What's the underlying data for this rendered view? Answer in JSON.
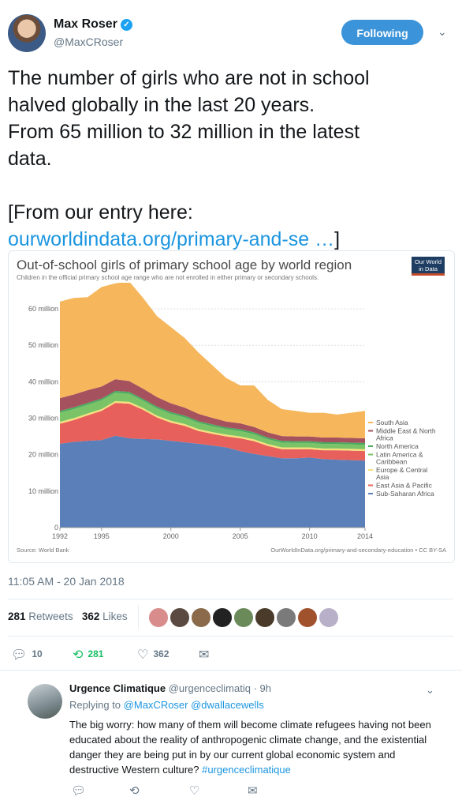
{
  "tweet": {
    "author_name": "Max Roser",
    "author_handle": "@MaxCRoser",
    "verified_icon": "verified-badge-icon",
    "follow_label": "Following",
    "text": "The number of girls who are not in school\nhalved globally in the last 20 years.\nFrom 65 million to 32 million in the latest\ndata.\n\n[From our entry here:",
    "link_text": "ourworldindata.org/primary-and-se …",
    "link_suffix": "]",
    "timestamp": "11:05 AM - 20 Jan 2018",
    "retweets_count": "281",
    "retweets_label": "Retweets",
    "likes_count": "362",
    "likes_label": "Likes",
    "actions": {
      "replies": "10",
      "retweets": "281",
      "likes": "362"
    }
  },
  "chart_card": {
    "title": "Out-of-school girls of primary school age by world region",
    "subtitle": "Children in the official primary school age range who are not enrolled in either primary or secondary schools.",
    "logo_line1": "Our World",
    "logo_line2": "in Data",
    "source_left": "Source: World Bank",
    "source_right": "OurWorldInData.org/primary-and-secondary-education • CC BY-SA"
  },
  "chart_data": {
    "type": "area",
    "stacked": true,
    "title": "Out-of-school girls of primary school age by world region",
    "x": [
      1992,
      1993,
      1994,
      1995,
      1996,
      1997,
      1998,
      1999,
      2000,
      2001,
      2002,
      2003,
      2004,
      2005,
      2006,
      2007,
      2008,
      2009,
      2010,
      2011,
      2012,
      2013,
      2014
    ],
    "xticks": [
      "1992",
      "1995",
      "2000",
      "2005",
      "2010",
      "2014"
    ],
    "xtick_values": [
      1992,
      1995,
      2000,
      2005,
      2010,
      2014
    ],
    "yticks": [
      "0",
      "10 million",
      "20 million",
      "30 million",
      "40 million",
      "50 million",
      "60 million"
    ],
    "ytick_values": [
      0,
      10,
      20,
      30,
      40,
      50,
      60
    ],
    "ylim": [
      0,
      65
    ],
    "unit": "million",
    "legend_position": "right",
    "series": [
      {
        "name": "Sub-Saharan Africa",
        "color": "#5b7fb8",
        "values": [
          23,
          23.5,
          23.8,
          24,
          25.2,
          24.5,
          24.3,
          24.2,
          23.8,
          23.4,
          23,
          22.5,
          22,
          21,
          20.2,
          19.6,
          19,
          19,
          19.2,
          18.8,
          18.6,
          18.5,
          18.4
        ]
      },
      {
        "name": "East Asia & Pacific",
        "color": "#e8605c",
        "values": [
          5.5,
          6,
          7,
          8,
          9,
          9.5,
          8,
          6,
          5,
          4.5,
          3.5,
          3.2,
          3,
          3.5,
          3.5,
          2.8,
          2.5,
          2.5,
          2.3,
          2.4,
          2.6,
          2.6,
          2.6
        ]
      },
      {
        "name": "Europe & Central Asia",
        "color": "#f5e07c",
        "values": [
          0.5,
          0.5,
          0.5,
          0.5,
          0.5,
          0.5,
          0.5,
          0.5,
          0.5,
          0.5,
          0.5,
          0.5,
          0.5,
          0.5,
          0.5,
          0.5,
          0.5,
          0.5,
          0.5,
          0.5,
          0.5,
          0.5,
          0.5
        ]
      },
      {
        "name": "Latin America & Caribbean",
        "color": "#7bc367",
        "values": [
          2.5,
          2.5,
          2.4,
          2.4,
          2.3,
          2.2,
          2,
          2,
          1.9,
          1.8,
          1.7,
          1.6,
          1.5,
          1.5,
          1.4,
          1.3,
          1.3,
          1.2,
          1.2,
          1.2,
          1.2,
          1.2,
          1.2
        ]
      },
      {
        "name": "North America",
        "color": "#4aaa5f",
        "values": [
          0.5,
          0.5,
          0.5,
          0.5,
          0.5,
          0.5,
          0.5,
          0.5,
          0.5,
          0.5,
          0.5,
          0.5,
          0.5,
          0.5,
          0.5,
          0.5,
          0.5,
          0.5,
          0.5,
          0.5,
          0.5,
          0.5,
          0.5
        ]
      },
      {
        "name": "Middle East & North Africa",
        "color": "#a5525e",
        "values": [
          3.5,
          3.5,
          3.5,
          3.3,
          3.2,
          3,
          2.8,
          2.6,
          2.4,
          2.2,
          2,
          1.8,
          1.6,
          1.6,
          1.5,
          1.4,
          1.3,
          1.3,
          1.3,
          1.3,
          1.3,
          1.3,
          1.3
        ]
      },
      {
        "name": "South Asia",
        "color": "#f6b65c",
        "values": [
          26.5,
          26.5,
          25.5,
          27.3,
          26.3,
          27.3,
          24.9,
          22.2,
          20.9,
          19.1,
          16.8,
          14.4,
          11.9,
          10.4,
          11.4,
          8.9,
          7.4,
          7,
          6.5,
          6.8,
          6.3,
          6.9,
          7.5
        ]
      }
    ]
  },
  "likers": [
    {
      "name": "liker-avatar-1",
      "color": "#d98c8c"
    },
    {
      "name": "liker-avatar-2",
      "color": "#5a4a42"
    },
    {
      "name": "liker-avatar-3",
      "color": "#8a6a4a"
    },
    {
      "name": "liker-avatar-4",
      "color": "#222222"
    },
    {
      "name": "liker-avatar-5",
      "color": "#6a8a5a"
    },
    {
      "name": "liker-avatar-6",
      "color": "#4a3a2a"
    },
    {
      "name": "liker-avatar-7",
      "color": "#7a7a7a"
    },
    {
      "name": "liker-avatar-8",
      "color": "#a0522d"
    },
    {
      "name": "liker-avatar-9",
      "color": "#b8b0c8"
    }
  ],
  "reply": {
    "author_name": "Urgence Climatique",
    "author_handle": "@urgenceclimatiq · 9h",
    "replying_prefix": "Replying to",
    "replying_to": "@MaxCRoser @dwallacewells",
    "text": "The big worry: how many of them will become climate refugees having not been educated about the reality of anthropogenic climate change, and the existential danger they are being put in by our current global economic system and destructive Western culture?",
    "hashtag": "#urgenceclimatique"
  }
}
